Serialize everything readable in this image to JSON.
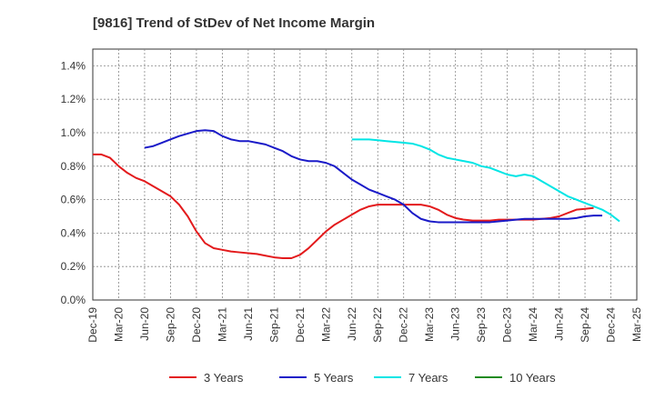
{
  "chart_data": {
    "type": "line",
    "title": "[9816]  Trend of StDev of Net Income Margin",
    "xlabel": "",
    "ylabel": "",
    "ylim": [
      0,
      1.5
    ],
    "yticks": [
      0.0,
      0.2,
      0.4,
      0.6,
      0.8,
      1.0,
      1.2,
      1.4
    ],
    "ytick_labels": [
      "0.0%",
      "0.2%",
      "0.4%",
      "0.6%",
      "0.8%",
      "1.0%",
      "1.2%",
      "1.4%"
    ],
    "x_ticks": [
      "Dec-19",
      "Mar-20",
      "Jun-20",
      "Sep-20",
      "Dec-20",
      "Mar-21",
      "Jun-21",
      "Sep-21",
      "Dec-21",
      "Mar-22",
      "Jun-22",
      "Sep-22",
      "Dec-22",
      "Mar-23",
      "Jun-23",
      "Sep-23",
      "Dec-23",
      "Mar-24",
      "Jun-24",
      "Sep-24",
      "Dec-24",
      "Mar-25"
    ],
    "grid": true,
    "legend_position": "bottom",
    "series": [
      {
        "name": "3 Years",
        "color": "#e31a1c",
        "start_index": 0,
        "values": [
          0.87,
          0.87,
          0.85,
          0.8,
          0.76,
          0.73,
          0.71,
          0.68,
          0.65,
          0.62,
          0.57,
          0.5,
          0.41,
          0.34,
          0.31,
          0.3,
          0.29,
          0.285,
          0.28,
          0.275,
          0.265,
          0.255,
          0.25,
          0.25,
          0.27,
          0.31,
          0.36,
          0.41,
          0.45,
          0.48,
          0.51,
          0.54,
          0.56,
          0.57,
          0.57,
          0.57,
          0.57,
          0.57,
          0.57,
          0.56,
          0.54,
          0.51,
          0.49,
          0.48,
          0.475,
          0.475,
          0.475,
          0.48,
          0.48,
          0.48,
          0.48,
          0.48,
          0.485,
          0.49,
          0.5,
          0.52,
          0.54,
          0.545,
          0.55
        ]
      },
      {
        "name": "5 Years",
        "color": "#1a1ac8",
        "start_index": 6,
        "values": [
          0.91,
          0.92,
          0.94,
          0.96,
          0.98,
          0.995,
          1.01,
          1.015,
          1.01,
          0.98,
          0.96,
          0.95,
          0.95,
          0.94,
          0.93,
          0.91,
          0.89,
          0.86,
          0.84,
          0.83,
          0.83,
          0.82,
          0.8,
          0.76,
          0.72,
          0.69,
          0.66,
          0.64,
          0.62,
          0.6,
          0.57,
          0.52,
          0.485,
          0.47,
          0.465,
          0.465,
          0.465,
          0.465,
          0.465,
          0.465,
          0.465,
          0.47,
          0.475,
          0.48,
          0.485,
          0.485,
          0.485,
          0.485,
          0.485,
          0.485,
          0.49,
          0.5,
          0.505,
          0.505
        ]
      },
      {
        "name": "7 Years",
        "color": "#00e5e5",
        "start_index": 30,
        "values": [
          0.96,
          0.96,
          0.96,
          0.955,
          0.95,
          0.945,
          0.94,
          0.935,
          0.92,
          0.9,
          0.87,
          0.85,
          0.84,
          0.83,
          0.82,
          0.8,
          0.79,
          0.77,
          0.75,
          0.74,
          0.75,
          0.74,
          0.71,
          0.68,
          0.65,
          0.62,
          0.6,
          0.58,
          0.56,
          0.54,
          0.51,
          0.47
        ]
      },
      {
        "name": "10 Years",
        "color": "#1e8a1e",
        "start_index": 0,
        "values": []
      }
    ]
  }
}
